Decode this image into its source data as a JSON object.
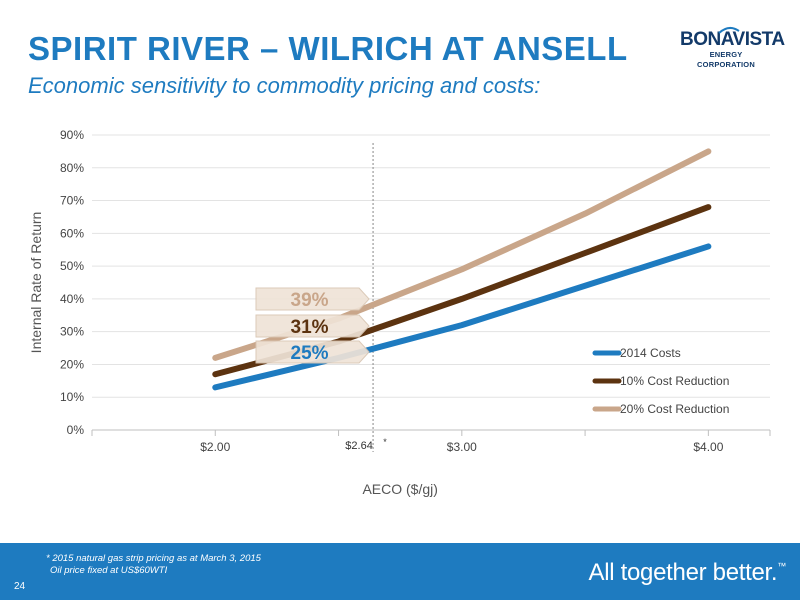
{
  "header": {
    "title": "SPIRIT RIVER – WILRICH AT ANSELL",
    "subtitle": "Economic sensitivity to commodity pricing and costs:"
  },
  "logo": {
    "name": "BONAVISTA",
    "sub": "ENERGY CORPORATION",
    "brand_color": "#133a69"
  },
  "chart_data": {
    "type": "line",
    "xlabel": "AECO ($/gj)",
    "ylabel": "Internal Rate of Return",
    "xlim": [
      1.5,
      4.25
    ],
    "ylim": [
      0,
      90
    ],
    "x_ticks": [
      2.0,
      3.0,
      4.0
    ],
    "x_tick_labels": [
      "$2.00",
      "$3.00",
      "$4.00"
    ],
    "y_ticks": [
      0,
      10,
      20,
      30,
      40,
      50,
      60,
      70,
      80,
      90
    ],
    "y_tick_labels": [
      "0%",
      "10%",
      "20%",
      "30%",
      "40%",
      "50%",
      "60%",
      "70%",
      "80%",
      "90%"
    ],
    "grid": "horizontal",
    "legend_position": "bottom-right",
    "series": [
      {
        "name": "2014 Costs",
        "color": "#1e7bc0",
        "x": [
          2.0,
          2.5,
          3.0,
          3.5,
          4.0
        ],
        "values": [
          13,
          22,
          32,
          44,
          56
        ]
      },
      {
        "name": "10% Cost Reduction",
        "color": "#5c3310",
        "x": [
          2.0,
          2.5,
          3.0,
          3.5,
          4.0
        ],
        "values": [
          17,
          27,
          40,
          54,
          68
        ]
      },
      {
        "name": "20% Cost Reduction",
        "color": "#c9a68a",
        "x": [
          2.0,
          2.5,
          3.0,
          3.5,
          4.0
        ],
        "values": [
          22,
          34,
          49,
          66,
          85
        ]
      }
    ],
    "reference_line": {
      "x": 2.64,
      "label": "$2.64",
      "marker": "*"
    },
    "callouts": [
      {
        "series": "20% Cost Reduction",
        "x": 2.64,
        "value": 39,
        "text": "39%"
      },
      {
        "series": "10% Cost Reduction",
        "x": 2.64,
        "value": 31,
        "text": "31%"
      },
      {
        "series": "2014 Costs",
        "x": 2.64,
        "value": 25,
        "text": "25%"
      }
    ]
  },
  "footer": {
    "footnote_line1": "* 2015 natural gas strip pricing as at March 3, 2015",
    "footnote_line2": "Oil price fixed at US$60WTI",
    "page_number": "24",
    "tagline": "All together better.",
    "tagline_mark": "™",
    "band_color": "#1e7bc0"
  }
}
